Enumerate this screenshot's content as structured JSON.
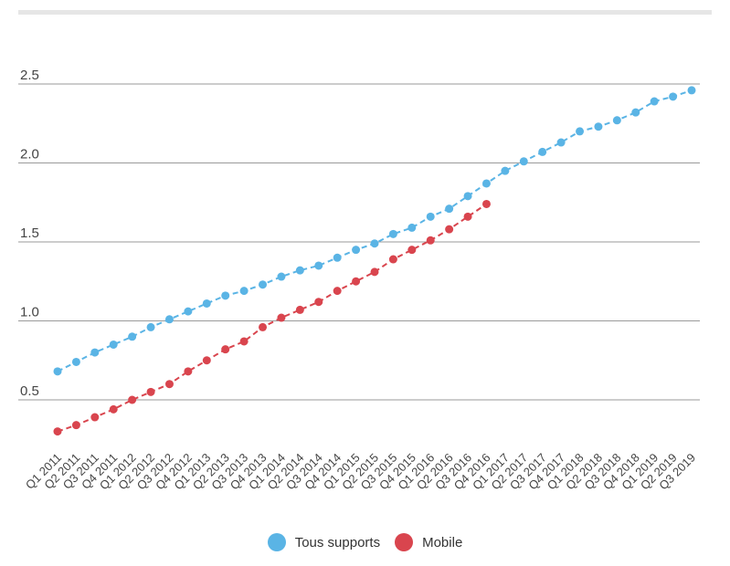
{
  "chart_data": {
    "type": "line",
    "categories": [
      "Q1 2011",
      "Q2 2011",
      "Q3 2011",
      "Q4 2011",
      "Q1 2012",
      "Q2 2012",
      "Q3 2012",
      "Q4 2012",
      "Q1 2013",
      "Q2 2013",
      "Q3 2013",
      "Q4 2013",
      "Q1 2014",
      "Q2 2014",
      "Q3 2014",
      "Q4 2014",
      "Q1 2015",
      "Q2 2015",
      "Q3 2015",
      "Q4 2015",
      "Q1 2016",
      "Q2 2016",
      "Q3 2016",
      "Q4 2016",
      "Q1 2017",
      "Q2 2017",
      "Q3 2017",
      "Q4 2017",
      "Q1 2018",
      "Q2 2018",
      "Q3 2018",
      "Q4 2018",
      "Q1 2019",
      "Q2 2019",
      "Q3 2019"
    ],
    "series": [
      {
        "name": "Tous supports",
        "color": "#5ab4e5",
        "values": [
          0.68,
          0.74,
          0.8,
          0.85,
          0.9,
          0.96,
          1.01,
          1.06,
          1.11,
          1.16,
          1.19,
          1.23,
          1.28,
          1.32,
          1.35,
          1.4,
          1.45,
          1.49,
          1.55,
          1.59,
          1.66,
          1.71,
          1.79,
          1.87,
          1.95,
          2.01,
          2.07,
          2.13,
          2.2,
          2.23,
          2.27,
          2.32,
          2.39,
          2.42,
          2.46
        ]
      },
      {
        "name": "Mobile",
        "color": "#d9454e",
        "values": [
          0.3,
          0.34,
          0.39,
          0.44,
          0.5,
          0.55,
          0.6,
          0.68,
          0.75,
          0.82,
          0.87,
          0.96,
          1.02,
          1.07,
          1.12,
          1.19,
          1.25,
          1.31,
          1.39,
          1.45,
          1.51,
          1.58,
          1.66,
          1.74,
          null,
          null,
          null,
          null,
          null,
          null,
          null,
          null,
          null,
          null,
          null
        ]
      }
    ],
    "yticks": [
      "0.5",
      "1.0",
      "1.5",
      "2.0",
      "2.5"
    ],
    "ylim": [
      0.3,
      2.6
    ],
    "grid": true,
    "legend_position": "bottom"
  }
}
